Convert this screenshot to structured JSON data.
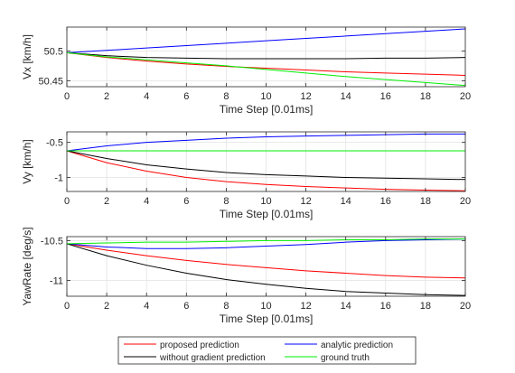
{
  "chart_data": [
    {
      "type": "line",
      "xlabel": "Time Step [0.01ms]",
      "ylabel": "Vx [km/h]",
      "xlim": [
        0,
        20
      ],
      "ylim": [
        50.44,
        50.54
      ],
      "xticks": [
        0,
        2,
        4,
        6,
        8,
        10,
        12,
        14,
        16,
        18,
        20
      ],
      "xtick_labels": [
        "0",
        "2",
        "4",
        "6",
        "8",
        "10",
        "12",
        "14",
        "16",
        "18",
        "20"
      ],
      "yticks": [
        50.45,
        50.5
      ],
      "ytick_labels": [
        "50.45",
        "50.5"
      ],
      "grid": true,
      "series": [
        {
          "name": "proposed prediction",
          "color": "#ff0000",
          "x": [
            0,
            2,
            4,
            6,
            8,
            10,
            12,
            14,
            16,
            18,
            20
          ],
          "y": [
            50.497,
            50.489,
            50.483,
            50.478,
            50.474,
            50.471,
            50.468,
            50.465,
            50.463,
            50.461,
            50.459
          ]
        },
        {
          "name": "analytic prediction",
          "color": "#0000ff",
          "x": [
            0,
            2,
            4,
            6,
            8,
            10,
            12,
            14,
            16,
            18,
            20
          ],
          "y": [
            50.497,
            50.501,
            50.505,
            50.509,
            50.513,
            50.517,
            50.521,
            50.525,
            50.529,
            50.533,
            50.537
          ]
        },
        {
          "name": "without gradient prediction",
          "color": "#000000",
          "x": [
            0,
            2,
            4,
            6,
            8,
            10,
            12,
            14,
            16,
            18,
            20
          ],
          "y": [
            50.497,
            50.492,
            50.489,
            50.488,
            50.487,
            50.487,
            50.487,
            50.487,
            50.488,
            50.488,
            50.489
          ]
        },
        {
          "name": "ground truth",
          "color": "#00ee00",
          "x": [
            0,
            2,
            4,
            6,
            8,
            10,
            12,
            14,
            16,
            18,
            20
          ],
          "y": [
            50.497,
            50.49,
            50.485,
            50.48,
            50.475,
            50.469,
            50.463,
            50.457,
            50.452,
            50.447,
            50.442
          ]
        }
      ]
    },
    {
      "type": "line",
      "xlabel": "Time Step [0.01ms]",
      "ylabel": "Vy [km/h]",
      "xlim": [
        0,
        20
      ],
      "ylim": [
        -1.2,
        -0.35
      ],
      "xticks": [
        0,
        2,
        4,
        6,
        8,
        10,
        12,
        14,
        16,
        18,
        20
      ],
      "xtick_labels": [
        "0",
        "2",
        "4",
        "6",
        "8",
        "10",
        "12",
        "14",
        "16",
        "18",
        "20"
      ],
      "yticks": [
        -1,
        -0.5
      ],
      "ytick_labels": [
        "-1",
        "-0.5"
      ],
      "grid": true,
      "series": [
        {
          "name": "proposed prediction",
          "color": "#ff0000",
          "x": [
            0,
            2,
            4,
            6,
            8,
            10,
            12,
            14,
            16,
            18,
            20
          ],
          "y": [
            -0.62,
            -0.79,
            -0.91,
            -1.0,
            -1.06,
            -1.1,
            -1.13,
            -1.15,
            -1.17,
            -1.18,
            -1.19
          ]
        },
        {
          "name": "analytic prediction",
          "color": "#0000ff",
          "x": [
            0,
            2,
            4,
            6,
            8,
            10,
            12,
            14,
            16,
            18,
            20
          ],
          "y": [
            -0.62,
            -0.55,
            -0.5,
            -0.47,
            -0.44,
            -0.42,
            -0.41,
            -0.4,
            -0.39,
            -0.38,
            -0.38
          ]
        },
        {
          "name": "without gradient prediction",
          "color": "#000000",
          "x": [
            0,
            2,
            4,
            6,
            8,
            10,
            12,
            14,
            16,
            18,
            20
          ],
          "y": [
            -0.62,
            -0.73,
            -0.82,
            -0.88,
            -0.93,
            -0.96,
            -0.98,
            -1.0,
            -1.01,
            -1.02,
            -1.03
          ]
        },
        {
          "name": "ground truth",
          "color": "#00ee00",
          "x": [
            0,
            2,
            4,
            6,
            8,
            10,
            12,
            14,
            16,
            18,
            20
          ],
          "y": [
            -0.62,
            -0.62,
            -0.62,
            -0.62,
            -0.62,
            -0.62,
            -0.62,
            -0.62,
            -0.62,
            -0.62,
            -0.62
          ]
        }
      ]
    },
    {
      "type": "line",
      "xlabel": "Time Step [0.01ms]",
      "ylabel": "YawRate [deg/s]",
      "xlim": [
        0,
        20
      ],
      "ylim": [
        -11.2,
        -10.45
      ],
      "xticks": [
        0,
        2,
        4,
        6,
        8,
        10,
        12,
        14,
        16,
        18,
        20
      ],
      "xtick_labels": [
        "0",
        "2",
        "4",
        "6",
        "8",
        "10",
        "12",
        "14",
        "16",
        "18",
        "20"
      ],
      "yticks": [
        -11,
        -10.5
      ],
      "ytick_labels": [
        "-11",
        "-10.5"
      ],
      "grid": true,
      "series": [
        {
          "name": "proposed prediction",
          "color": "#ff0000",
          "x": [
            0,
            2,
            4,
            6,
            8,
            10,
            12,
            14,
            16,
            18,
            20
          ],
          "y": [
            -10.54,
            -10.62,
            -10.69,
            -10.75,
            -10.8,
            -10.84,
            -10.88,
            -10.91,
            -10.94,
            -10.96,
            -10.97
          ]
        },
        {
          "name": "analytic prediction",
          "color": "#0000ff",
          "x": [
            0,
            2,
            4,
            6,
            8,
            10,
            12,
            14,
            16,
            18,
            20
          ],
          "y": [
            -10.54,
            -10.58,
            -10.6,
            -10.6,
            -10.59,
            -10.57,
            -10.55,
            -10.52,
            -10.5,
            -10.49,
            -10.48
          ]
        },
        {
          "name": "without gradient prediction",
          "color": "#000000",
          "x": [
            0,
            2,
            4,
            6,
            8,
            10,
            12,
            14,
            16,
            18,
            20
          ],
          "y": [
            -10.54,
            -10.69,
            -10.81,
            -10.91,
            -10.99,
            -11.05,
            -11.1,
            -11.14,
            -11.16,
            -11.18,
            -11.19
          ]
        },
        {
          "name": "ground truth",
          "color": "#00ee00",
          "x": [
            0,
            2,
            4,
            6,
            8,
            10,
            12,
            14,
            16,
            18,
            20
          ],
          "y": [
            -10.54,
            -10.53,
            -10.52,
            -10.52,
            -10.51,
            -10.5,
            -10.5,
            -10.49,
            -10.49,
            -10.48,
            -10.48
          ]
        }
      ]
    }
  ],
  "legend": {
    "placement": "bottom",
    "items": [
      {
        "label": "proposed prediction",
        "color": "#ff0000"
      },
      {
        "label": "analytic prediction",
        "color": "#0000ff"
      },
      {
        "label": "without gradient prediction",
        "color": "#000000"
      },
      {
        "label": "ground truth",
        "color": "#00ee00"
      }
    ]
  }
}
